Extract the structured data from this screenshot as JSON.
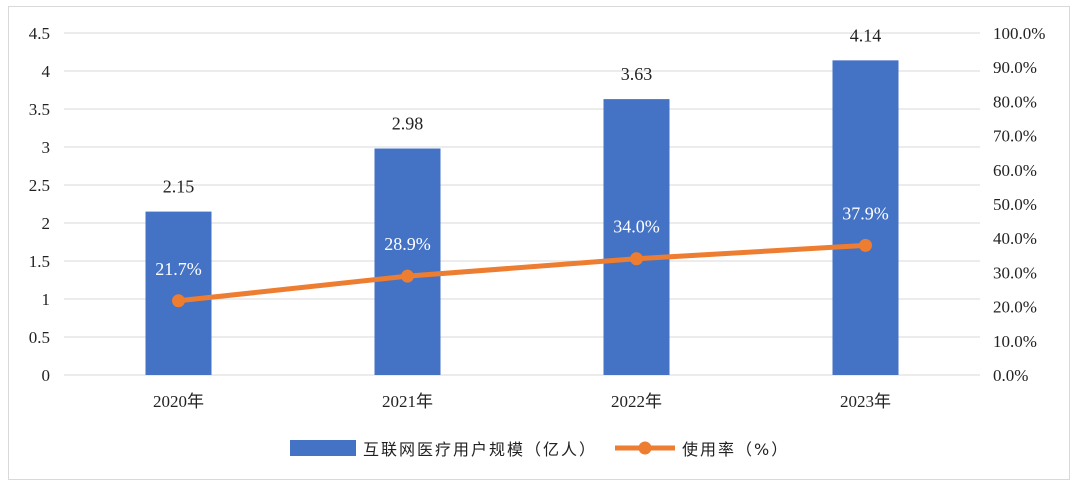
{
  "chart_data": {
    "type": "bar",
    "categories": [
      "2020年",
      "2021年",
      "2022年",
      "2023年"
    ],
    "series": [
      {
        "name": "互联网医疗用户规模（亿人）",
        "type": "bar",
        "axis": "left",
        "color": "#4472C4",
        "values": [
          2.15,
          2.98,
          3.63,
          4.14
        ],
        "labels": [
          "2.15",
          "2.98",
          "3.63",
          "4.14"
        ]
      },
      {
        "name": "使用率（%）",
        "type": "line",
        "axis": "right",
        "color": "#ED7D31",
        "values": [
          21.7,
          28.9,
          34.0,
          37.9
        ],
        "labels": [
          "21.7%",
          "28.9%",
          "34.0%",
          "37.9%"
        ]
      }
    ],
    "y_left": {
      "min": 0,
      "max": 4.5,
      "ticks": [
        "0",
        "0.5",
        "1",
        "1.5",
        "2",
        "2.5",
        "3",
        "3.5",
        "4",
        "4.5"
      ]
    },
    "y_right": {
      "min": 0,
      "max": 100,
      "ticks": [
        "0.0%",
        "10.0%",
        "20.0%",
        "30.0%",
        "40.0%",
        "50.0%",
        "60.0%",
        "70.0%",
        "80.0%",
        "90.0%",
        "100.0%"
      ]
    },
    "grid": true,
    "legend_position": "bottom"
  }
}
